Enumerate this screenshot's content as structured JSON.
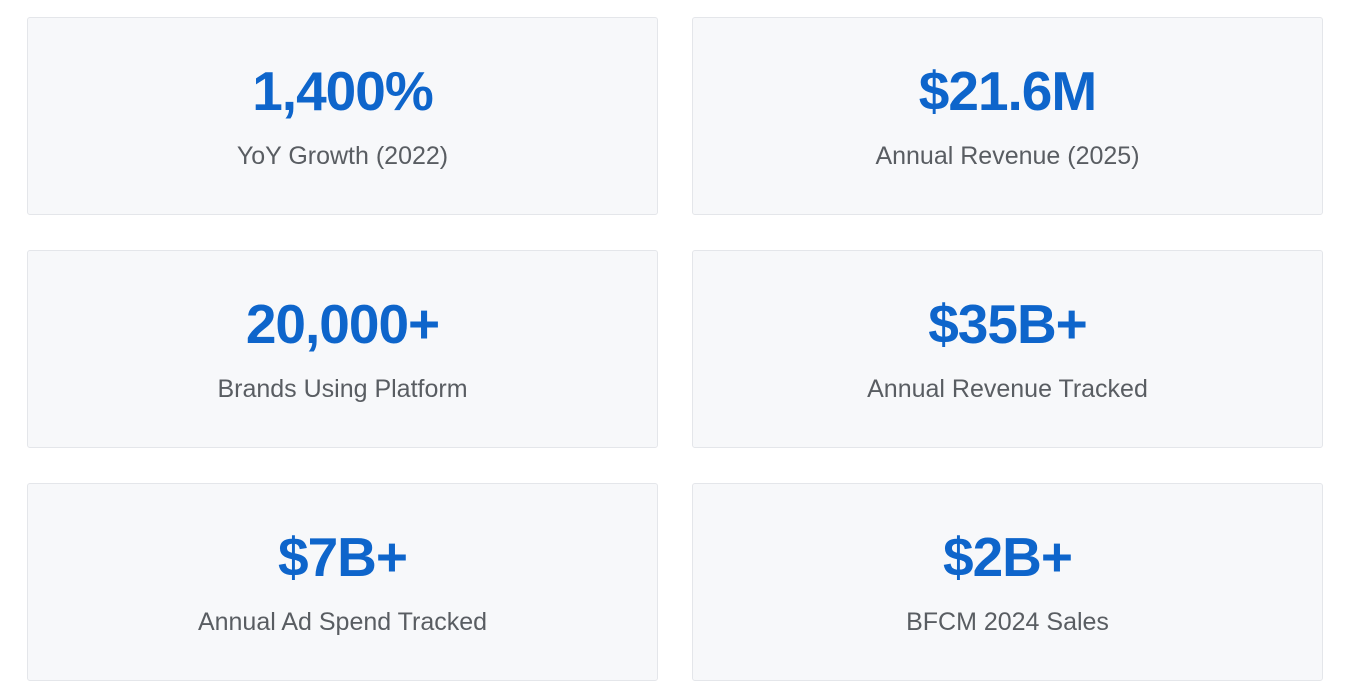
{
  "colors": {
    "accent": "#0e65cb",
    "label": "#595d62",
    "card-bg": "#f7f8fa",
    "card-border": "#e4e6ea",
    "page-bg": "#ffffff"
  },
  "cards": [
    {
      "value": "1,400%",
      "label": "YoY Growth (2022)"
    },
    {
      "value": "$21.6M",
      "label": "Annual Revenue (2025)"
    },
    {
      "value": "20,000+",
      "label": "Brands Using Platform"
    },
    {
      "value": "$35B+",
      "label": "Annual Revenue Tracked"
    },
    {
      "value": "$7B+",
      "label": "Annual Ad Spend Tracked"
    },
    {
      "value": "$2B+",
      "label": "BFCM 2024 Sales"
    }
  ]
}
